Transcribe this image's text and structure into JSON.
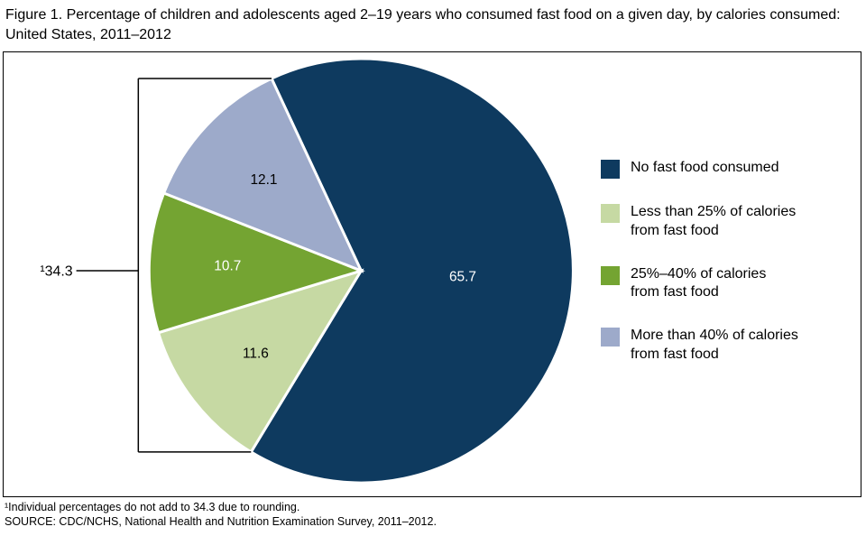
{
  "title": "Figure 1. Percentage of children and adolescents aged 2–19 years who consumed fast food on a given day, by calories consumed: United States, 2011–2012",
  "chart_data": {
    "type": "pie",
    "title": "Percentage of children and adolescents aged 2–19 years who consumed fast food on a given day, by calories consumed: United States, 2011–2012",
    "start_angle_deg": -25,
    "stroke_color": "#ffffff",
    "slices": [
      {
        "label": "No fast food consumed",
        "legend_label": "No fast food consumed",
        "value": 65.7,
        "color": "#0e3a5f",
        "text_color": "#ffffff",
        "label_radius": 0.48
      },
      {
        "label": "Less than 25% of calories from fast food",
        "legend_label": "Less than 25% of calories\nfrom fast food",
        "value": 11.6,
        "color": "#c6d9a3",
        "text_color": "#000000",
        "label_radius": 0.63
      },
      {
        "label": "25%–40% of calories from fast food",
        "legend_label": "25%–40% of calories\nfrom fast food",
        "value": 10.7,
        "color": "#74a432",
        "text_color": "#ffffff",
        "label_radius": 0.63
      },
      {
        "label": "More than 40% of calories from fast food",
        "legend_label": "More than 40% of calories\nfrom fast food",
        "value": 12.1,
        "color": "#9daaca",
        "text_color": "#000000",
        "label_radius": 0.63
      }
    ],
    "group_annotation": {
      "label": "¹34.3",
      "covers": [
        "Less than 25% of calories from fast food",
        "25%–40% of calories from fast food",
        "More than 40% of calories from fast food"
      ]
    },
    "legend_position": "right",
    "grid": false
  },
  "footnotes": [
    "¹Individual percentages do not add to 34.3 due to rounding.",
    "SOURCE: CDC/NCHS, National Health and Nutrition Examination Survey, 2011–2012."
  ]
}
